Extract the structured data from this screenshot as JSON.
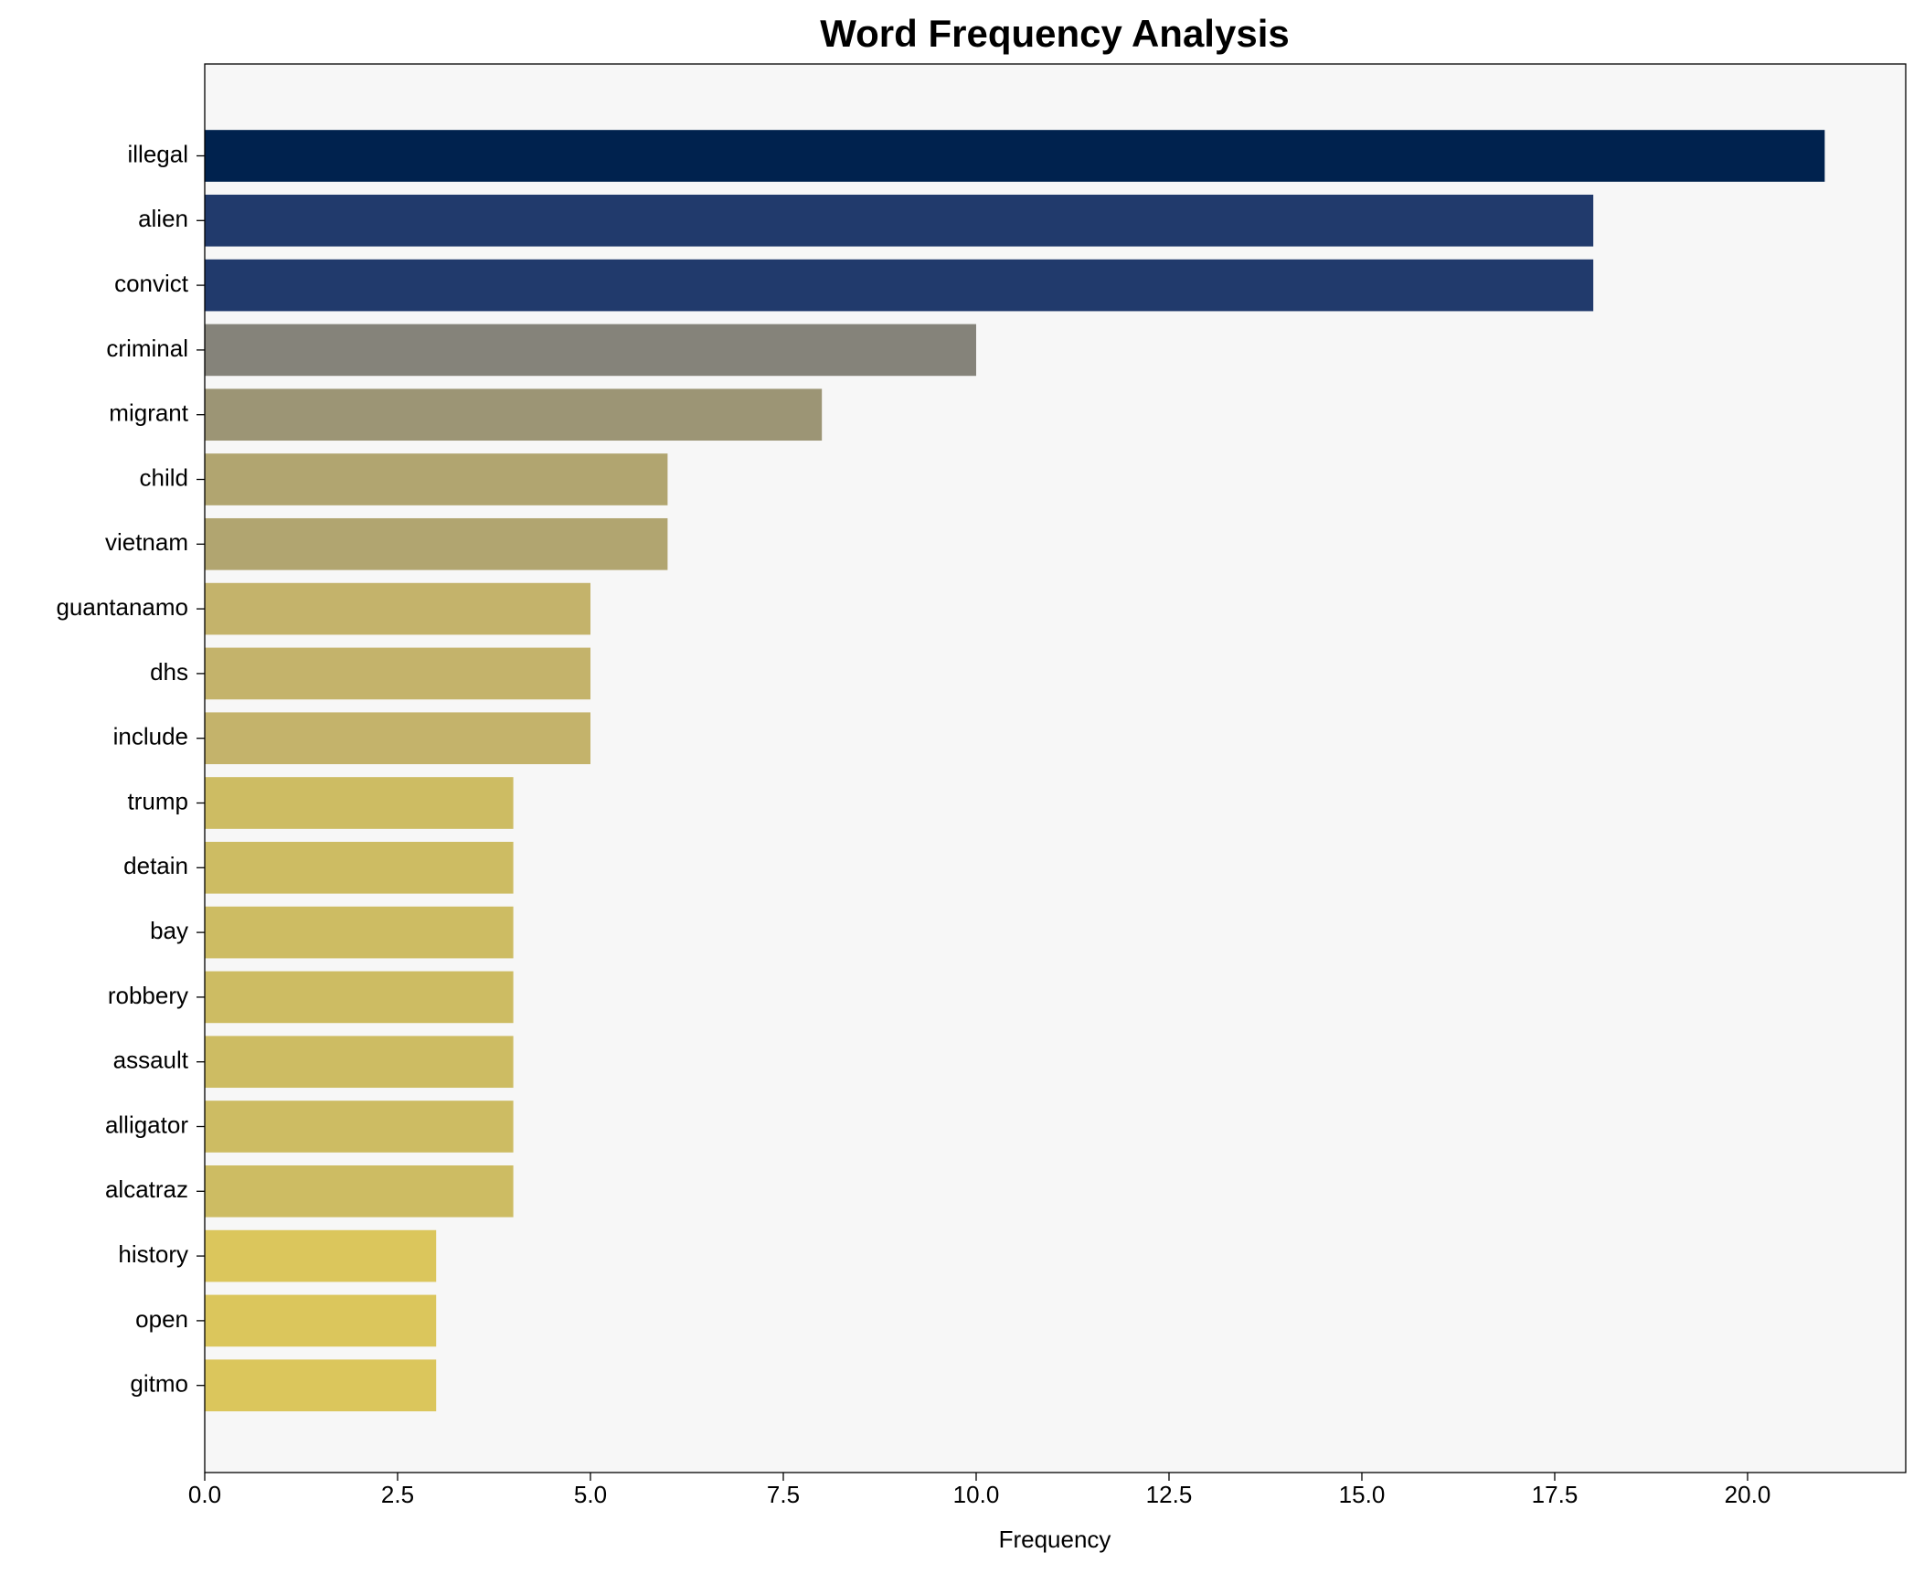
{
  "chart_data": {
    "type": "barh",
    "title": "Word Frequency Analysis",
    "xlabel": "Frequency",
    "categories": [
      "illegal",
      "alien",
      "convict",
      "criminal",
      "migrant",
      "child",
      "vietnam",
      "guantanamo",
      "dhs",
      "include",
      "trump",
      "detain",
      "bay",
      "robbery",
      "assault",
      "alligator",
      "alcatraz",
      "history",
      "open",
      "gitmo"
    ],
    "values": [
      21,
      18,
      18,
      10,
      8,
      6,
      6,
      5,
      5,
      5,
      4,
      4,
      4,
      4,
      4,
      4,
      4,
      3,
      3,
      3
    ],
    "colors": [
      "#00224e",
      "#213a6c",
      "#213a6c",
      "#85837a",
      "#9c9575",
      "#b1a570",
      "#b1a570",
      "#c4b36b",
      "#c4b36b",
      "#c4b36b",
      "#cdbc63",
      "#cdbc63",
      "#cdbc63",
      "#cdbc63",
      "#cdbc63",
      "#cdbc63",
      "#cdbc63",
      "#dbc65c",
      "#dbc65c",
      "#dbc65c"
    ],
    "xlim": [
      0,
      22.05
    ],
    "xticks": [
      {
        "value": 0,
        "label": "0.0"
      },
      2.5,
      {
        "value": 5,
        "label": "5.0"
      },
      7.5,
      {
        "value": 10,
        "label": "10.0"
      },
      12.5,
      {
        "value": 15,
        "label": "15.0"
      },
      17.5,
      {
        "value": 20,
        "label": "20.0"
      }
    ],
    "grid": false
  }
}
